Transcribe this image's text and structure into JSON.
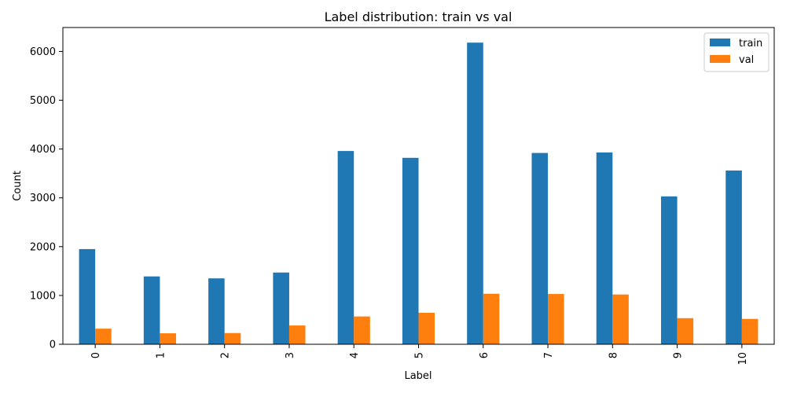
{
  "chart_data": {
    "type": "bar",
    "title": "Label distribution: train vs val",
    "xlabel": "Label",
    "ylabel": "Count",
    "categories": [
      "0",
      "1",
      "2",
      "3",
      "4",
      "5",
      "6",
      "7",
      "8",
      "9",
      "10"
    ],
    "series": [
      {
        "name": "train",
        "color": "#1f77b4",
        "values": [
          1950,
          1390,
          1350,
          1470,
          3960,
          3820,
          6180,
          3920,
          3930,
          3030,
          3560
        ]
      },
      {
        "name": "val",
        "color": "#ff7f0e",
        "values": [
          320,
          225,
          230,
          385,
          570,
          645,
          1035,
          1030,
          1020,
          535,
          520
        ]
      }
    ],
    "ylim": [
      0,
      6490
    ],
    "yticks": [
      0,
      1000,
      2000,
      3000,
      4000,
      5000,
      6000
    ],
    "legend_position": "top-right",
    "grid": false,
    "xtick_rotation": 90
  }
}
